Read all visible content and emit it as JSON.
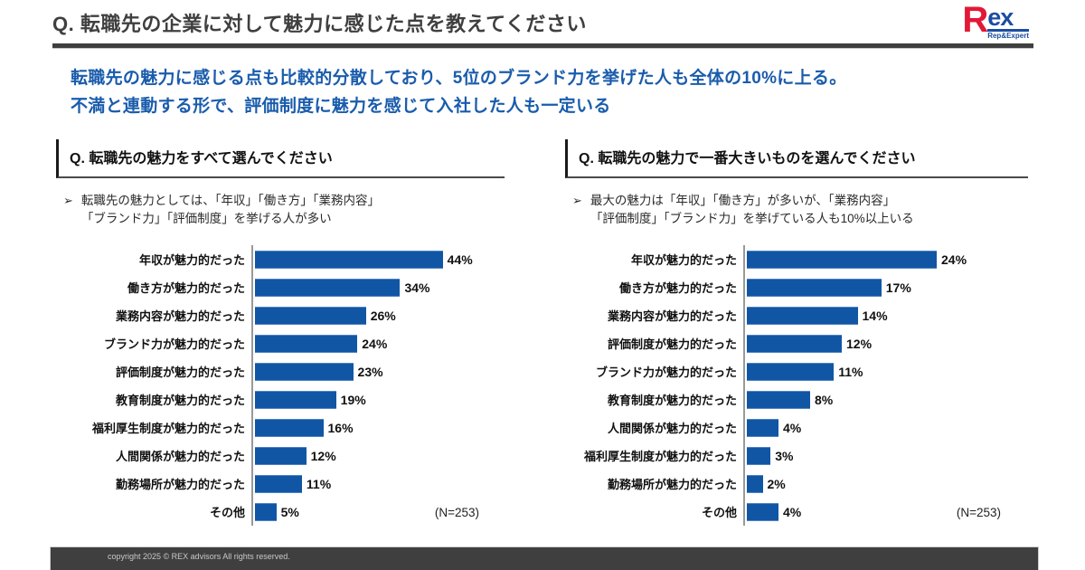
{
  "header": {
    "title": "Q. 転職先の企業に対して魅力に感じた点を教えてください",
    "logo": {
      "main": "R",
      "ex": "ex",
      "tagline": "Rep&Expert"
    }
  },
  "summary": {
    "line1": "転職先の魅力に感じる点も比較的分散しており、5位のブランド力を挙げた人も全体の10%に上る。",
    "line2": "不満と連動する形で、評価制度に魅力を感じて入社した人も一定いる"
  },
  "panels": [
    {
      "question": "Q. 転職先の魅力をすべて選んでください",
      "bullet_marker": "➢",
      "bullet_line1": "転職先の魅力としては、「年収」「働き方」「業務内容」",
      "bullet_line2": "「ブランド力」「評価制度」を挙げる人が多い",
      "n_label": "(N=253)"
    },
    {
      "question": "Q. 転職先の魅力で一番大きいものを選んでください",
      "bullet_marker": "➢",
      "bullet_line1": "最大の魅力は「年収」「働き方」が多いが、「業務内容」",
      "bullet_line2": "「評価制度」「ブランド力」を挙げている人も10%以上いる",
      "n_label": "(N=253)"
    }
  ],
  "chart_data": [
    {
      "type": "bar",
      "orientation": "horizontal",
      "title": "Q. 転職先の魅力をすべて選んでください",
      "categories": [
        "年収が魅力的だった",
        "働き方が魅力的だった",
        "業務内容が魅力的だった",
        "ブランド力が魅力的だった",
        "評価制度が魅力的だった",
        "教育制度が魅力的だった",
        "福利厚生制度が魅力的だった",
        "人間関係が魅力的だった",
        "勤務場所が魅力的だった",
        "その他"
      ],
      "values": [
        44,
        34,
        26,
        24,
        23,
        19,
        16,
        12,
        11,
        5
      ],
      "unit": "%",
      "xlim": [
        0,
        50
      ],
      "grid": false,
      "legend": false,
      "sample_size_label": "(N=253)",
      "bar_color": "#1156A5"
    },
    {
      "type": "bar",
      "orientation": "horizontal",
      "title": "Q. 転職先の魅力で一番大きいものを選んでください",
      "categories": [
        "年収が魅力的だった",
        "働き方が魅力的だった",
        "業務内容が魅力的だった",
        "評価制度が魅力的だった",
        "ブランド力が魅力的だった",
        "教育制度が魅力的だった",
        "人間関係が魅力的だった",
        "福利厚生制度が魅力的だった",
        "勤務場所が魅力的だった",
        "その他"
      ],
      "values": [
        24,
        17,
        14,
        12,
        11,
        8,
        4,
        3,
        2,
        4
      ],
      "unit": "%",
      "xlim": [
        0,
        28
      ],
      "grid": false,
      "legend": false,
      "sample_size_label": "(N=253)",
      "bar_color": "#1156A5"
    }
  ],
  "footer": {
    "copyright": "copyright 2025 © REX advisors All rights reserved."
  },
  "colors": {
    "bar_blue": "#1156A5",
    "accent_blue": "#1A5CAC",
    "dark_gray": "#3F3F3F",
    "footer_bg": "#3F3F3F",
    "logo_red": "#E31837",
    "logo_blue": "#1B4DA1"
  }
}
